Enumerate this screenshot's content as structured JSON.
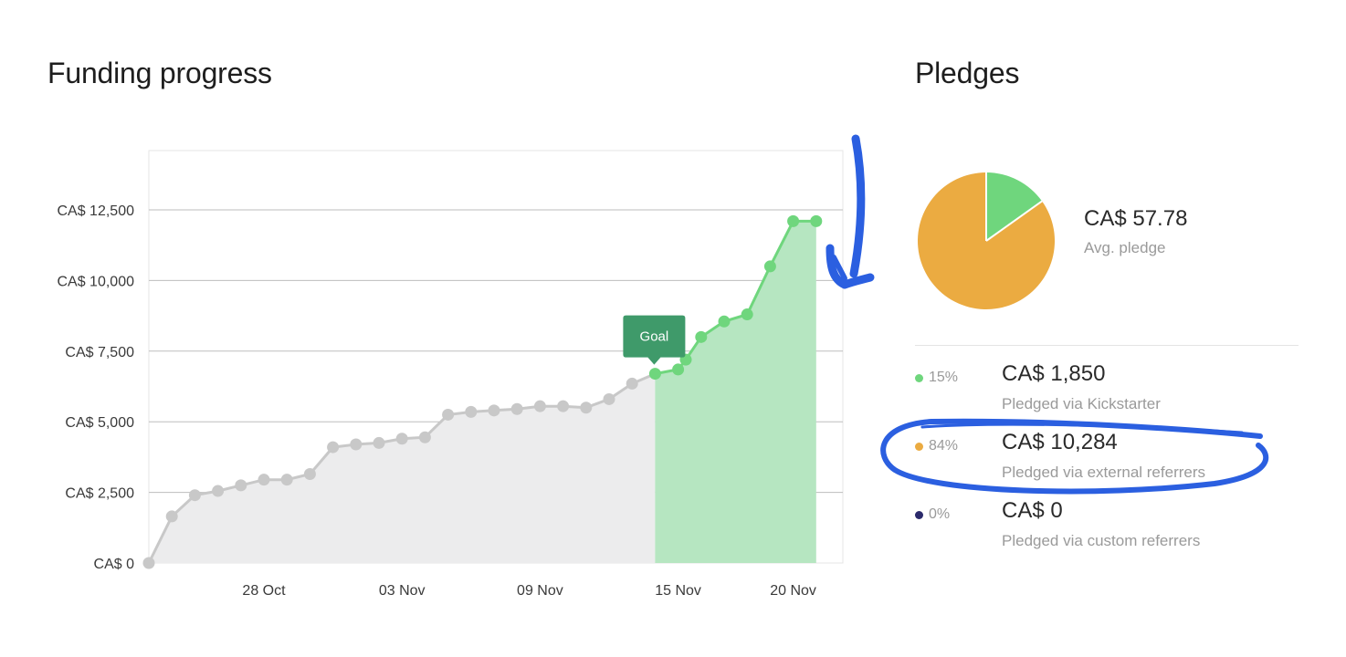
{
  "funding": {
    "title": "Funding progress",
    "goal_label": "Goal"
  },
  "pledges": {
    "title": "Pledges",
    "avg_value": "CA$ 57.78",
    "avg_label": "Avg. pledge",
    "rows": [
      {
        "pct": "15%",
        "amount": "CA$ 1,850",
        "label": "Pledged via Kickstarter",
        "color": "#6fd67d"
      },
      {
        "pct": "84%",
        "amount": "CA$ 10,284",
        "label": "Pledged via external referrers",
        "color": "#ebab41"
      },
      {
        "pct": "0%",
        "amount": "CA$ 0",
        "label": "Pledged via custom referrers",
        "color": "#2b2a6b"
      }
    ]
  },
  "colors": {
    "grey_line": "#c8c8c8",
    "grey_fill": "#ececed",
    "green_line": "#6fd67d",
    "green_fill": "#b6e6c1",
    "goal_badge": "#3f9a6a",
    "annotation_blue": "#2b5fe0"
  },
  "chart_data": [
    {
      "type": "line",
      "x": [
        "2023-10-23",
        "2023-10-24",
        "2023-10-25",
        "2023-10-26",
        "2023-10-27",
        "2023-10-28",
        "2023-10-29",
        "2023-10-30",
        "2023-10-31",
        "2023-11-01",
        "2023-11-02",
        "2023-11-03",
        "2023-11-04",
        "2023-11-05",
        "2023-11-06",
        "2023-11-07",
        "2023-11-08",
        "2023-11-09",
        "2023-11-10",
        "2023-11-11",
        "2023-11-12",
        "2023-11-13",
        "2023-11-14",
        "2023-11-15",
        "2023-11-15T08:00",
        "2023-11-16",
        "2023-11-17",
        "2023-11-18",
        "2023-11-19",
        "2023-11-20",
        "2023-11-21"
      ],
      "values": [
        0,
        1650,
        2400,
        2550,
        2750,
        2950,
        2950,
        3150,
        4100,
        4200,
        4250,
        4400,
        4450,
        5250,
        5350,
        5400,
        5450,
        5550,
        5550,
        5500,
        5800,
        6350,
        6700,
        6850,
        7200,
        8000,
        8550,
        8800,
        10500,
        12100,
        12100
      ],
      "goal_index": 22,
      "x_ticks": [
        {
          "x": "2023-10-28",
          "label": "28 Oct"
        },
        {
          "x": "2023-11-03",
          "label": "03 Nov"
        },
        {
          "x": "2023-11-09",
          "label": "09 Nov"
        },
        {
          "x": "2023-11-15",
          "label": "15 Nov"
        },
        {
          "x": "2023-11-20",
          "label": "20 Nov"
        }
      ],
      "y_ticks": [
        {
          "v": 0,
          "label": "CA$ 0"
        },
        {
          "v": 2500,
          "label": "CA$ 2,500"
        },
        {
          "v": 5000,
          "label": "CA$ 5,000"
        },
        {
          "v": 7500,
          "label": "CA$ 7,500"
        },
        {
          "v": 10000,
          "label": "CA$ 10,000"
        },
        {
          "v": 12500,
          "label": "CA$ 12,500"
        }
      ],
      "ylim": [
        0,
        14600
      ],
      "grid": true
    },
    {
      "type": "pie",
      "labels": [
        "Pledged via Kickstarter",
        "Pledged via external referrers",
        "Pledged via custom referrers"
      ],
      "values": [
        15,
        84,
        0
      ],
      "colors": [
        "#6fd67d",
        "#ebab41",
        "#2b2a6b"
      ]
    }
  ]
}
